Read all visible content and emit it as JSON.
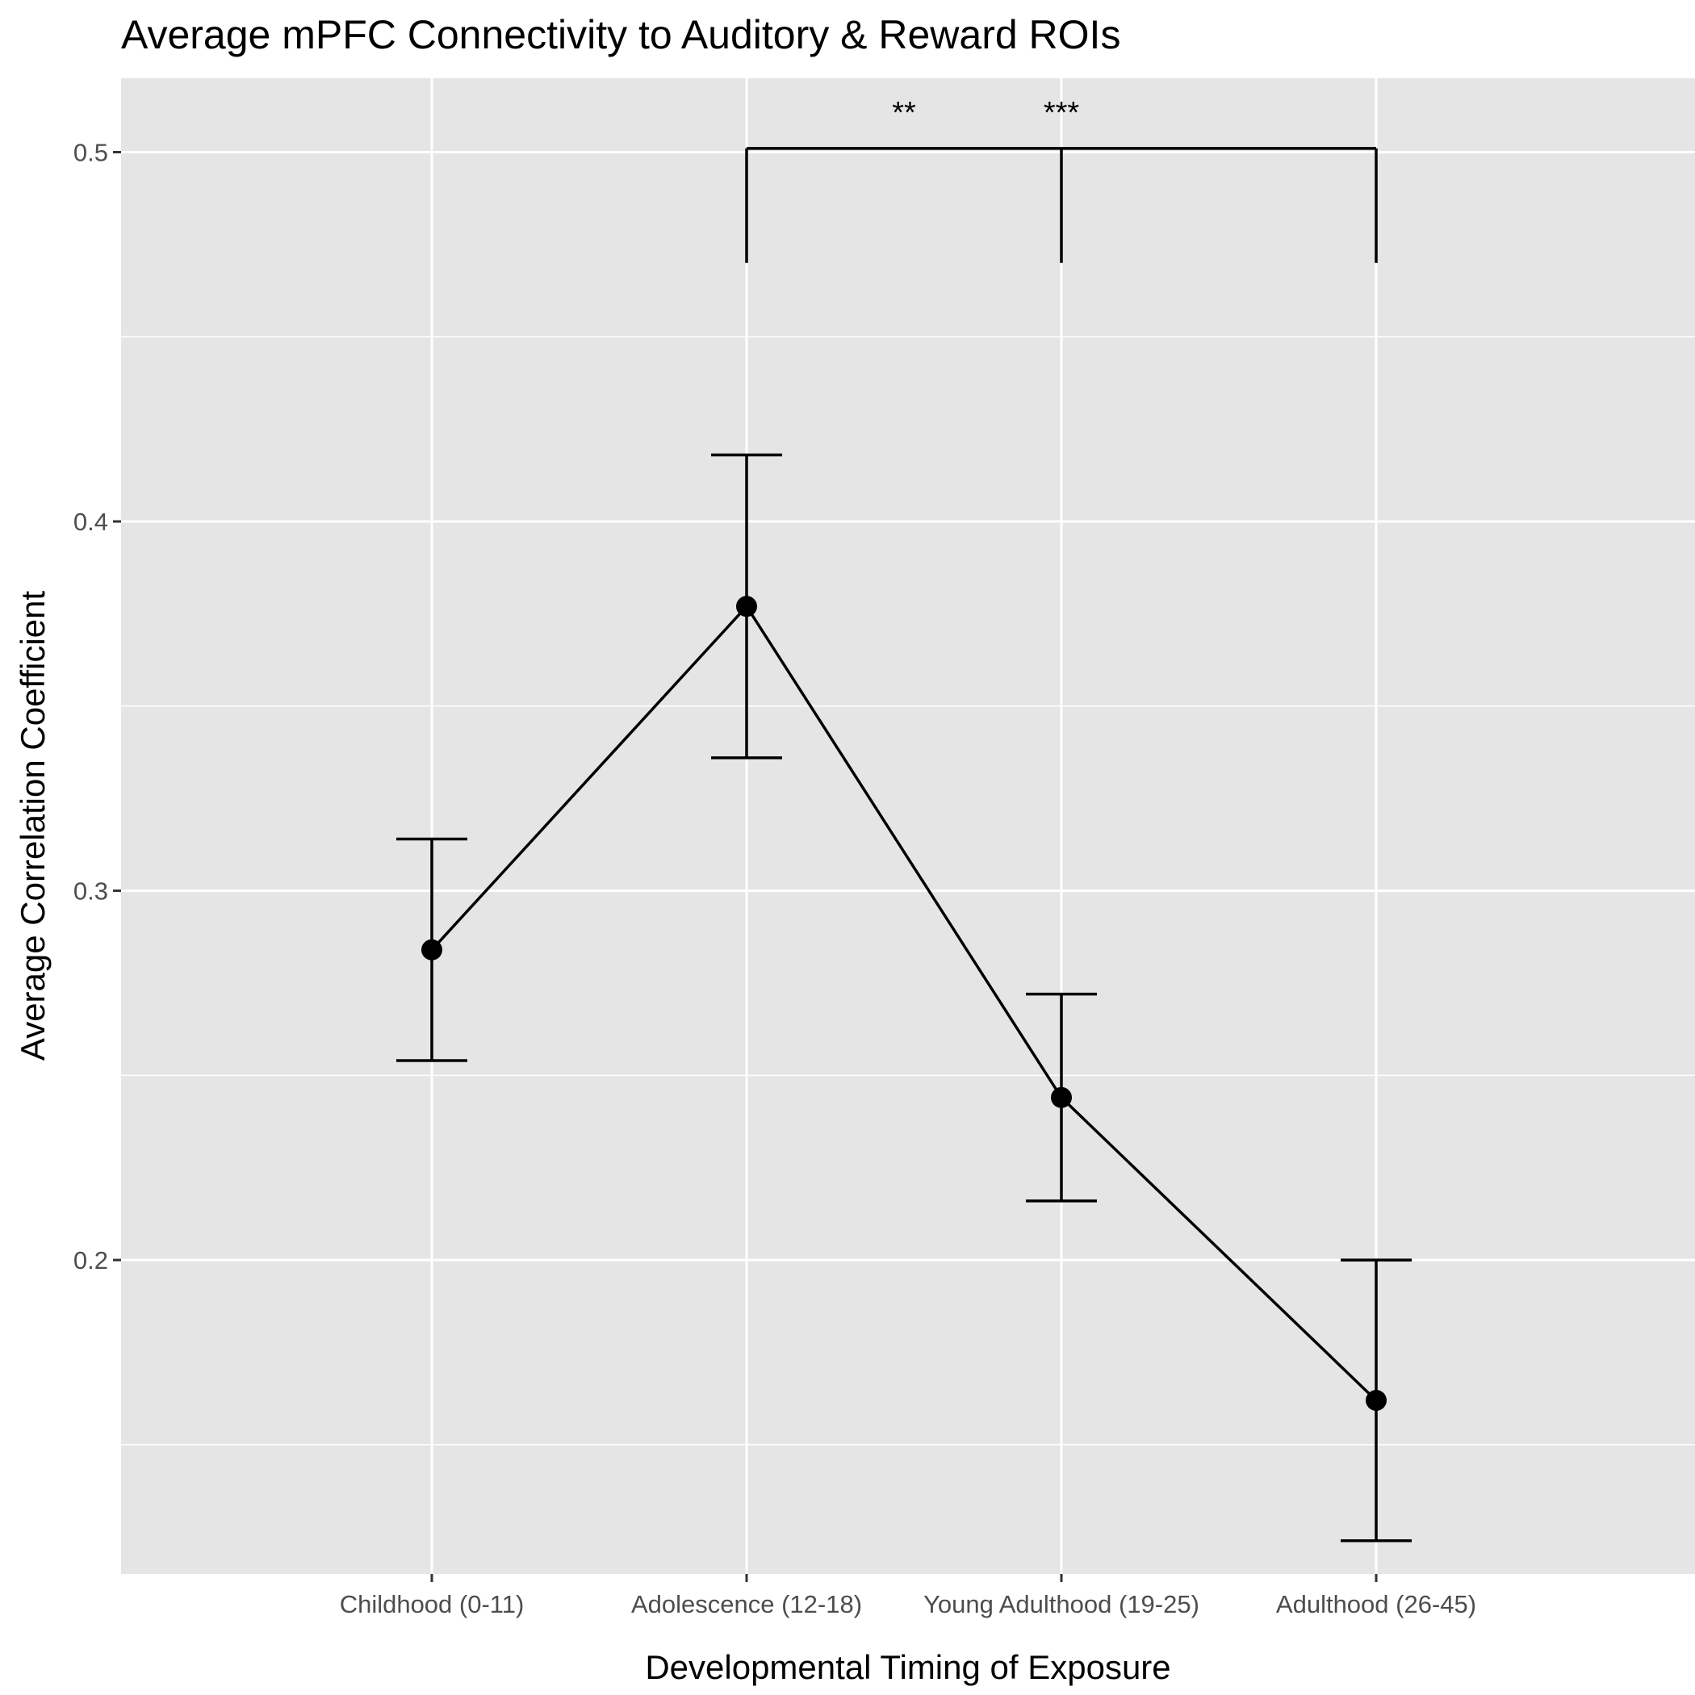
{
  "chart_data": {
    "type": "line",
    "title": "Average mPFC Connectivity to Auditory & Reward ROIs",
    "xlabel": "Developmental Timing of Exposure",
    "ylabel": "Average Correlation Coefficient",
    "categories": [
      "Childhood (0-11)",
      "Adolescence (12-18)",
      "Young Adulthood (19-25)",
      "Adulthood (26-45)"
    ],
    "values": [
      0.284,
      0.377,
      0.244,
      0.162
    ],
    "error_low": [
      0.254,
      0.336,
      0.216,
      0.124
    ],
    "error_high": [
      0.314,
      0.418,
      0.272,
      0.2
    ],
    "ylim": [
      0.115,
      0.52
    ],
    "yticks": [
      0.2,
      0.3,
      0.4,
      0.5
    ],
    "ytick_labels": [
      "0.2",
      "0.3",
      "0.4",
      "0.5"
    ],
    "grid": true,
    "significance": {
      "bracket_y": 0.501,
      "bracket_bottom": 0.47,
      "anchor_categories": [
        1,
        2,
        3
      ],
      "labels": [
        {
          "text": "**",
          "between": [
            1,
            2
          ],
          "y": 0.511
        },
        {
          "text": "***",
          "at": 2,
          "y": 0.511
        }
      ]
    },
    "colors": {
      "panel": "#e5e5e5",
      "grid": "#ffffff",
      "line": "#000000",
      "tick_text": "#4d4d4d"
    }
  }
}
